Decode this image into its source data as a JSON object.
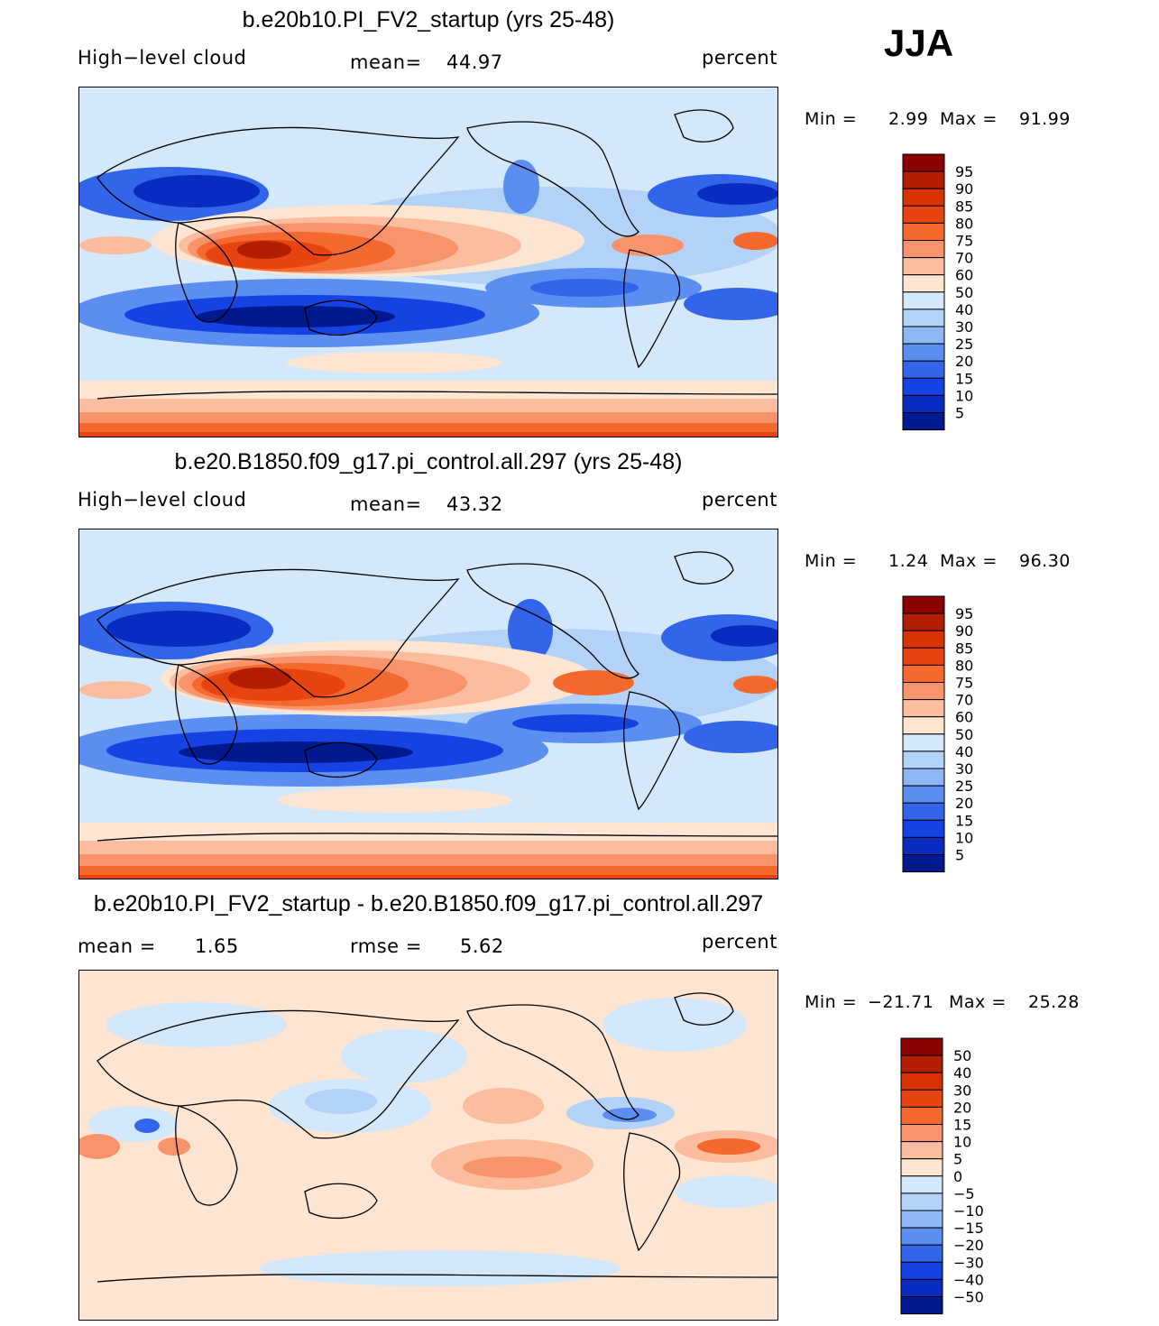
{
  "season": "JJA",
  "chart_data": [
    {
      "type": "heatmap",
      "title": "b.e20b10.PI_FV2_startup (yrs 25-48)",
      "variable": "High−level cloud",
      "mean_label": "mean=",
      "mean_value": "44.97",
      "units": "percent",
      "min_label": "Min =",
      "min_value": "2.99",
      "max_label": "Max =",
      "max_value": "91.99",
      "levels": [
        "95",
        "90",
        "85",
        "80",
        "75",
        "70",
        "60",
        "50",
        "40",
        "30",
        "25",
        "20",
        "15",
        "10",
        "5"
      ],
      "colors": [
        "#8b0000",
        "#b21e00",
        "#d83200",
        "#e74412",
        "#f5692f",
        "#f9936b",
        "#fbbd9d",
        "#fde5d2",
        "#d4e8fc",
        "#b2d2f8",
        "#8db6f4",
        "#5b8ef0",
        "#3265ea",
        "#1542e3",
        "#0a2bc0",
        "#001a8e"
      ]
    },
    {
      "type": "heatmap",
      "title": "b.e20.B1850.f09_g17.pi_control.all.297 (yrs 25-48)",
      "variable": "High−level cloud",
      "mean_label": "mean=",
      "mean_value": "43.32",
      "units": "percent",
      "min_label": "Min =",
      "min_value": "1.24",
      "max_label": "Max =",
      "max_value": "96.30",
      "levels": [
        "95",
        "90",
        "85",
        "80",
        "75",
        "70",
        "60",
        "50",
        "40",
        "30",
        "25",
        "20",
        "15",
        "10",
        "5"
      ],
      "colors": [
        "#8b0000",
        "#b21e00",
        "#d83200",
        "#e74412",
        "#f5692f",
        "#f9936b",
        "#fbbd9d",
        "#fde5d2",
        "#d4e8fc",
        "#b2d2f8",
        "#8db6f4",
        "#5b8ef0",
        "#3265ea",
        "#1542e3",
        "#0a2bc0",
        "#001a8e"
      ]
    },
    {
      "type": "heatmap",
      "title": "b.e20b10.PI_FV2_startup - b.e20.B1850.f09_g17.pi_control.all.297",
      "mean_label": "mean =",
      "mean_value": "1.65",
      "rmse_label": "rmse =",
      "rmse_value": "5.62",
      "units": "percent",
      "min_label": "Min =",
      "min_value": "−21.71",
      "max_label": "Max =",
      "max_value": "25.28",
      "levels": [
        "50",
        "40",
        "30",
        "20",
        "15",
        "10",
        "5",
        "0",
        "−5",
        "−10",
        "−15",
        "−20",
        "−30",
        "−40",
        "−50"
      ],
      "colors": [
        "#8b0000",
        "#b21e00",
        "#d83200",
        "#e74412",
        "#f5692f",
        "#f9936b",
        "#fbbd9d",
        "#fde5d2",
        "#d4e8fc",
        "#b2d2f8",
        "#8db6f4",
        "#5b8ef0",
        "#3265ea",
        "#1542e3",
        "#0a2bc0",
        "#001a8e"
      ]
    }
  ]
}
